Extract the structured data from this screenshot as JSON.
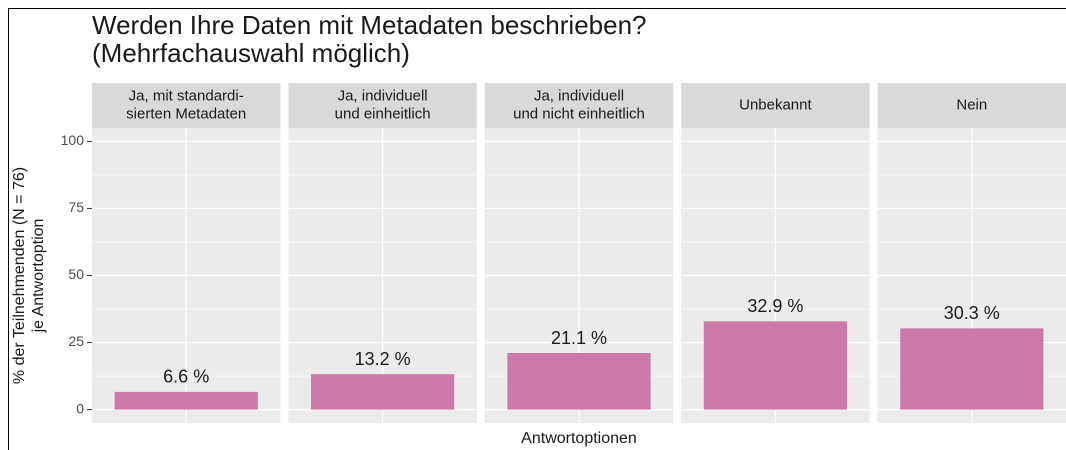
{
  "chart_data": {
    "type": "bar",
    "title": [
      "Werden Ihre Daten mit Metadaten beschrieben?",
      "(Mehrfachauswahl möglich)"
    ],
    "categories": [
      [
        "Ja, mit standardi-",
        "sierten Metadaten"
      ],
      [
        "Ja, individuell",
        "und einheitlich"
      ],
      [
        "Ja, individuell",
        "und nicht einheitlich"
      ],
      [
        "Unbekannt"
      ],
      [
        "Nein"
      ]
    ],
    "values": [
      6.6,
      13.2,
      21.1,
      32.9,
      30.3
    ],
    "value_labels": [
      "6.6 %",
      "13.2 %",
      "21.1 %",
      "32.9 %",
      "30.3 %"
    ],
    "color": "#cc79a7",
    "xlabel": "Antwortoptionen",
    "ylabel": [
      "% der Teilnehmenden (N = 76)",
      "je Antwortoption"
    ],
    "ylim": [
      -5,
      105
    ],
    "yticks": [
      0,
      25,
      50,
      75,
      100
    ],
    "grid": true
  }
}
